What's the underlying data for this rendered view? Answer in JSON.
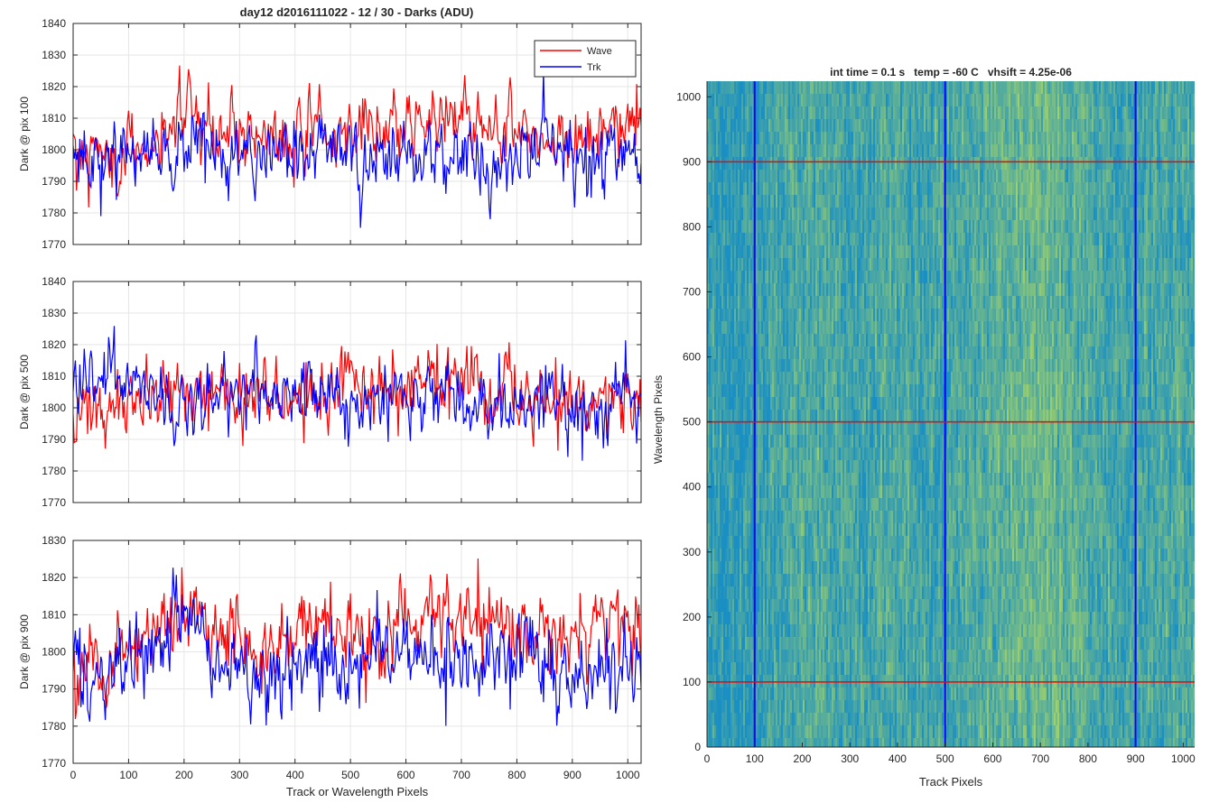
{
  "figure": {
    "title_left": "day12 d2016111022 - 12 / 30 - Darks (ADU)",
    "title_right": "int time = 0.1 s   temp = -60 C   vhsift = 4.25e-06"
  },
  "colors": {
    "wave": "#ff0000",
    "trk": "#0000ff",
    "grid": "#e6e6e6",
    "axis": "#262626",
    "heat_low": "#1a8fc4",
    "heat_high": "#9fd06a"
  },
  "chart_data": [
    {
      "type": "line",
      "title": "day12 d2016111022 - 12 / 30 - Darks (ADU)",
      "xlabel": "",
      "ylabel": "Dark @ pix 100",
      "xlim": [
        0,
        1024
      ],
      "ylim": [
        1770,
        1840
      ],
      "xticks": [
        0,
        100,
        200,
        300,
        400,
        500,
        600,
        700,
        800,
        900,
        1000
      ],
      "yticks": [
        1770,
        1780,
        1790,
        1800,
        1810,
        1820,
        1830,
        1840
      ],
      "xtick_labels_visible": false,
      "grid": true,
      "legend": {
        "position": "top-right",
        "entries": [
          "Wave",
          "Trk"
        ]
      },
      "series": [
        {
          "name": "Wave",
          "color": "#ff0000",
          "x": [
            0,
            50,
            100,
            150,
            200,
            250,
            300,
            350,
            400,
            450,
            500,
            550,
            600,
            650,
            700,
            750,
            800,
            850,
            900,
            950,
            1000,
            1024
          ],
          "values": [
            1800,
            1796,
            1799,
            1800,
            1808,
            1806,
            1807,
            1803,
            1802,
            1803,
            1806,
            1806,
            1808,
            1810,
            1811,
            1807,
            1806,
            1802,
            1805,
            1806,
            1806,
            1805
          ]
        },
        {
          "name": "Trk",
          "color": "#0000ff",
          "x": [
            0,
            50,
            100,
            150,
            200,
            250,
            300,
            350,
            400,
            450,
            500,
            550,
            600,
            650,
            700,
            750,
            800,
            850,
            900,
            950,
            1000,
            1024
          ],
          "values": [
            1800,
            1796,
            1797,
            1800,
            1803,
            1801,
            1799,
            1798,
            1800,
            1798,
            1797,
            1797,
            1798,
            1798,
            1796,
            1794,
            1799,
            1802,
            1797,
            1799,
            1800,
            1796
          ]
        }
      ]
    },
    {
      "type": "line",
      "title": "",
      "xlabel": "",
      "ylabel": "Dark @ pix 500",
      "xlim": [
        0,
        1024
      ],
      "ylim": [
        1770,
        1840
      ],
      "xticks": [
        0,
        100,
        200,
        300,
        400,
        500,
        600,
        700,
        800,
        900,
        1000
      ],
      "yticks": [
        1770,
        1780,
        1790,
        1800,
        1810,
        1820,
        1830,
        1840
      ],
      "xtick_labels_visible": false,
      "grid": true,
      "series": [
        {
          "name": "Wave",
          "color": "#ff0000",
          "x": [
            0,
            50,
            100,
            150,
            200,
            250,
            300,
            350,
            400,
            450,
            500,
            550,
            600,
            650,
            700,
            750,
            800,
            850,
            900,
            950,
            1000,
            1024
          ],
          "values": [
            1797,
            1799,
            1800,
            1803,
            1806,
            1803,
            1803,
            1804,
            1803,
            1804,
            1806,
            1805,
            1807,
            1808,
            1809,
            1806,
            1804,
            1801,
            1804,
            1803,
            1804,
            1803
          ]
        },
        {
          "name": "Trk",
          "color": "#0000ff",
          "x": [
            0,
            50,
            100,
            150,
            200,
            250,
            300,
            350,
            400,
            450,
            500,
            550,
            600,
            650,
            700,
            750,
            800,
            850,
            900,
            950,
            1000,
            1024
          ],
          "values": [
            1809,
            1808,
            1806,
            1805,
            1804,
            1803,
            1804,
            1802,
            1806,
            1803,
            1803,
            1804,
            1805,
            1806,
            1802,
            1802,
            1802,
            1804,
            1801,
            1799,
            1802,
            1799
          ]
        }
      ]
    },
    {
      "type": "line",
      "title": "",
      "xlabel": "Track or Wavelength Pixels",
      "ylabel": "Dark @ pix 900",
      "xlim": [
        0,
        1024
      ],
      "ylim": [
        1770,
        1830
      ],
      "xticks": [
        0,
        100,
        200,
        300,
        400,
        500,
        600,
        700,
        800,
        900,
        1000
      ],
      "yticks": [
        1770,
        1780,
        1790,
        1800,
        1810,
        1820,
        1830
      ],
      "xtick_labels_visible": true,
      "grid": true,
      "series": [
        {
          "name": "Wave",
          "color": "#ff0000",
          "x": [
            0,
            50,
            100,
            150,
            200,
            250,
            300,
            350,
            400,
            450,
            500,
            550,
            600,
            650,
            700,
            750,
            800,
            850,
            900,
            950,
            1000,
            1024
          ],
          "values": [
            1800,
            1799,
            1801,
            1803,
            1808,
            1805,
            1803,
            1803,
            1803,
            1804,
            1804,
            1806,
            1809,
            1810,
            1810,
            1808,
            1806,
            1803,
            1806,
            1807,
            1806,
            1806
          ]
        },
        {
          "name": "Trk",
          "color": "#0000ff",
          "x": [
            0,
            50,
            100,
            150,
            200,
            250,
            300,
            350,
            400,
            450,
            500,
            550,
            600,
            650,
            700,
            750,
            800,
            850,
            900,
            950,
            1000,
            1024
          ],
          "values": [
            1798,
            1794,
            1796,
            1799,
            1812,
            1800,
            1795,
            1791,
            1797,
            1796,
            1798,
            1799,
            1799,
            1800,
            1798,
            1796,
            1798,
            1798,
            1793,
            1796,
            1796,
            1795
          ]
        }
      ]
    },
    {
      "type": "heatmap",
      "title": "int time = 0.1 s   temp = -60 C   vhsift = 4.25e-06",
      "xlabel": "Track Pixels",
      "ylabel": "Wavelength Pixels",
      "xlim": [
        0,
        1024
      ],
      "ylim": [
        0,
        1024
      ],
      "xticks": [
        0,
        100,
        200,
        300,
        400,
        500,
        600,
        700,
        800,
        900,
        1000
      ],
      "yticks": [
        0,
        100,
        200,
        300,
        400,
        500,
        600,
        700,
        800,
        900,
        1000
      ],
      "vertical_markers": {
        "color": "#0000ff",
        "values": [
          100,
          500,
          900
        ]
      },
      "horizontal_markers": {
        "color": "#ff0000",
        "values": [
          100,
          500,
          900
        ]
      },
      "column_brightness": {
        "x": [
          0,
          50,
          100,
          150,
          200,
          250,
          300,
          350,
          400,
          450,
          500,
          550,
          600,
          650,
          700,
          750,
          800,
          850,
          900,
          950,
          1000,
          1024
        ],
        "values": [
          0.18,
          0.15,
          0.2,
          0.3,
          0.42,
          0.38,
          0.3,
          0.35,
          0.36,
          0.3,
          0.36,
          0.4,
          0.48,
          0.55,
          0.62,
          0.5,
          0.4,
          0.3,
          0.32,
          0.38,
          0.4,
          0.35
        ]
      }
    }
  ]
}
